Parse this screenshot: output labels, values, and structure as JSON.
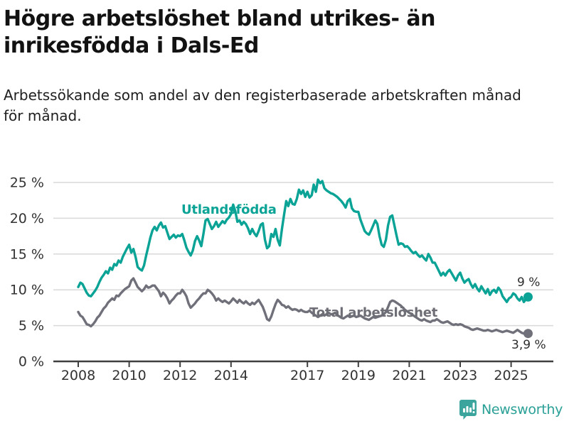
{
  "header": {
    "title": "Högre arbetslöshet bland utrikes- än inrikesfödda i Dals-Ed",
    "subtitle": "Arbetssökande som andel av den registerbaserade arbetskraften månad för månad."
  },
  "chart_data": {
    "type": "line",
    "title": "",
    "xlabel": "",
    "ylabel": "",
    "grid": true,
    "ylim": [
      0,
      26
    ],
    "x_start_year": 2008,
    "points_per_year": 12,
    "x_ticks": [
      {
        "year": 2008,
        "label": "2008"
      },
      {
        "year": 2010,
        "label": "2010"
      },
      {
        "year": 2012,
        "label": "2012"
      },
      {
        "year": 2014,
        "label": "2014"
      },
      {
        "year": 2017,
        "label": "2017"
      },
      {
        "year": 2019,
        "label": "2019"
      },
      {
        "year": 2021,
        "label": "2021"
      },
      {
        "year": 2023,
        "label": "2023"
      },
      {
        "year": 2025,
        "label": "2025"
      }
    ],
    "y_ticks": [
      {
        "value": 0,
        "label": "0 %"
      },
      {
        "value": 5,
        "label": "5 %"
      },
      {
        "value": 10,
        "label": "10 %"
      },
      {
        "value": 15,
        "label": "15 %"
      },
      {
        "value": 20,
        "label": "20 %"
      },
      {
        "value": 25,
        "label": "25 %"
      }
    ],
    "series": [
      {
        "name": "Utlandsfödda",
        "color": "#0aa396",
        "end_label": "9 %",
        "end_value": 9.0,
        "values": [
          10.4,
          11.0,
          10.8,
          10.2,
          9.6,
          9.2,
          9.1,
          9.5,
          9.9,
          10.4,
          11.1,
          11.7,
          12.1,
          12.6,
          12.3,
          13.1,
          12.8,
          13.6,
          13.4,
          14.1,
          13.8,
          14.6,
          15.2,
          15.8,
          16.3,
          15.2,
          15.7,
          14.6,
          13.2,
          12.9,
          12.7,
          13.4,
          14.8,
          16.0,
          17.3,
          18.3,
          18.8,
          18.3,
          19.0,
          19.4,
          18.7,
          18.9,
          18.0,
          17.1,
          17.4,
          17.7,
          17.3,
          17.6,
          17.5,
          17.8,
          16.9,
          15.9,
          15.3,
          14.8,
          15.5,
          16.8,
          17.5,
          16.9,
          16.1,
          17.8,
          19.7,
          19.9,
          19.2,
          18.5,
          18.9,
          19.5,
          18.8,
          19.2,
          19.6,
          19.3,
          19.8,
          20.1,
          20.6,
          21.9,
          21.0,
          19.5,
          19.7,
          19.1,
          19.5,
          19.2,
          18.6,
          17.8,
          18.5,
          17.9,
          17.5,
          18.2,
          19.1,
          19.3,
          17.0,
          15.8,
          16.1,
          17.8,
          17.4,
          18.5,
          17.0,
          16.2,
          18.5,
          20.5,
          22.4,
          21.7,
          22.7,
          22.0,
          21.9,
          22.7,
          24.0,
          23.4,
          23.9,
          23.0,
          23.7,
          22.9,
          23.2,
          24.7,
          23.7,
          25.4,
          24.9,
          25.2,
          24.2,
          23.9,
          23.7,
          23.5,
          23.4,
          23.2,
          23.0,
          22.7,
          22.4,
          22.0,
          21.5,
          22.4,
          22.7,
          21.4,
          21.0,
          20.9,
          20.9,
          19.8,
          19.0,
          18.2,
          17.9,
          17.7,
          18.3,
          19.0,
          19.7,
          19.2,
          17.5,
          16.3,
          16.0,
          17.0,
          19.0,
          20.2,
          20.4,
          19.0,
          17.6,
          16.3,
          16.5,
          16.4,
          16.0,
          16.1,
          15.8,
          15.4,
          15.1,
          15.3,
          14.9,
          14.6,
          14.8,
          14.4,
          14.1,
          15.0,
          14.5,
          13.8,
          13.8,
          13.2,
          12.6,
          12.0,
          12.4,
          12.0,
          12.5,
          12.8,
          12.3,
          11.8,
          11.3,
          12.0,
          12.4,
          11.6,
          11.0,
          11.3,
          11.5,
          10.8,
          10.3,
          10.8,
          10.2,
          9.8,
          10.5,
          10.0,
          9.5,
          10.1,
          9.3,
          9.8,
          10.0,
          9.6,
          10.3,
          9.9,
          9.1,
          8.7,
          8.3,
          8.8,
          9.0,
          9.5,
          9.3,
          8.8,
          8.5,
          9.0,
          8.3,
          8.7,
          9.0
        ]
      },
      {
        "name": "Total arbetslöshet",
        "color": "#70707a",
        "end_label": "3,9 %",
        "end_value": 3.9,
        "values": [
          6.9,
          6.4,
          6.2,
          5.7,
          5.2,
          5.1,
          4.9,
          5.2,
          5.6,
          6.1,
          6.4,
          6.9,
          7.4,
          7.7,
          8.2,
          8.5,
          8.8,
          8.6,
          9.2,
          9.1,
          9.5,
          9.8,
          10.1,
          10.3,
          10.5,
          11.3,
          11.6,
          11.0,
          10.4,
          10.1,
          9.8,
          10.1,
          10.6,
          10.3,
          10.4,
          10.6,
          10.6,
          10.2,
          9.8,
          9.1,
          9.6,
          9.3,
          8.8,
          8.1,
          8.5,
          8.8,
          9.2,
          9.5,
          9.5,
          10.0,
          9.6,
          9.1,
          8.1,
          7.5,
          7.8,
          8.1,
          8.5,
          8.8,
          9.2,
          9.5,
          9.5,
          10.0,
          9.8,
          9.5,
          9.1,
          8.5,
          8.8,
          8.5,
          8.3,
          8.5,
          8.3,
          8.1,
          8.4,
          8.8,
          8.5,
          8.2,
          8.6,
          8.3,
          8.1,
          8.4,
          8.1,
          7.9,
          8.2,
          8.0,
          8.3,
          8.6,
          8.1,
          7.6,
          6.8,
          5.9,
          5.7,
          6.3,
          7.2,
          8.0,
          8.6,
          8.3,
          7.9,
          7.8,
          7.5,
          7.7,
          7.4,
          7.2,
          7.3,
          7.2,
          7.0,
          7.2,
          7.0,
          6.9,
          6.9,
          7.1,
          6.8,
          6.6,
          6.4,
          6.2,
          6.4,
          6.6,
          6.4,
          6.6,
          6.8,
          6.6,
          6.6,
          6.8,
          6.5,
          6.3,
          6.1,
          6.0,
          6.2,
          6.4,
          6.2,
          6.3,
          6.4,
          6.2,
          6.3,
          6.4,
          6.2,
          6.0,
          5.9,
          5.8,
          6.0,
          6.2,
          6.1,
          6.2,
          6.3,
          6.4,
          6.6,
          6.9,
          7.6,
          8.3,
          8.5,
          8.4,
          8.2,
          8.0,
          7.8,
          7.5,
          7.2,
          7.0,
          6.8,
          6.6,
          6.4,
          6.2,
          6.0,
          5.8,
          5.7,
          5.9,
          5.7,
          5.6,
          5.5,
          5.7,
          5.7,
          5.9,
          5.7,
          5.5,
          5.4,
          5.5,
          5.6,
          5.4,
          5.2,
          5.1,
          5.2,
          5.1,
          5.2,
          5.1,
          4.9,
          4.8,
          4.7,
          4.5,
          4.4,
          4.5,
          4.6,
          4.5,
          4.4,
          4.3,
          4.3,
          4.4,
          4.3,
          4.2,
          4.3,
          4.4,
          4.3,
          4.2,
          4.1,
          4.2,
          4.3,
          4.2,
          4.1,
          4.0,
          4.2,
          4.4,
          4.2,
          4.0,
          3.9,
          4.1,
          3.9
        ]
      }
    ],
    "legend_position": "inline-labels",
    "styles": {
      "gridline_color": "#d9d9d9",
      "axis_color": "#3f3f3f",
      "tick_label_color": "#333333"
    }
  },
  "footer": {
    "brand": "Newsworthy",
    "brand_color": "#2aa096",
    "logo_icon": "bar-chart-speech-bubble-icon"
  }
}
